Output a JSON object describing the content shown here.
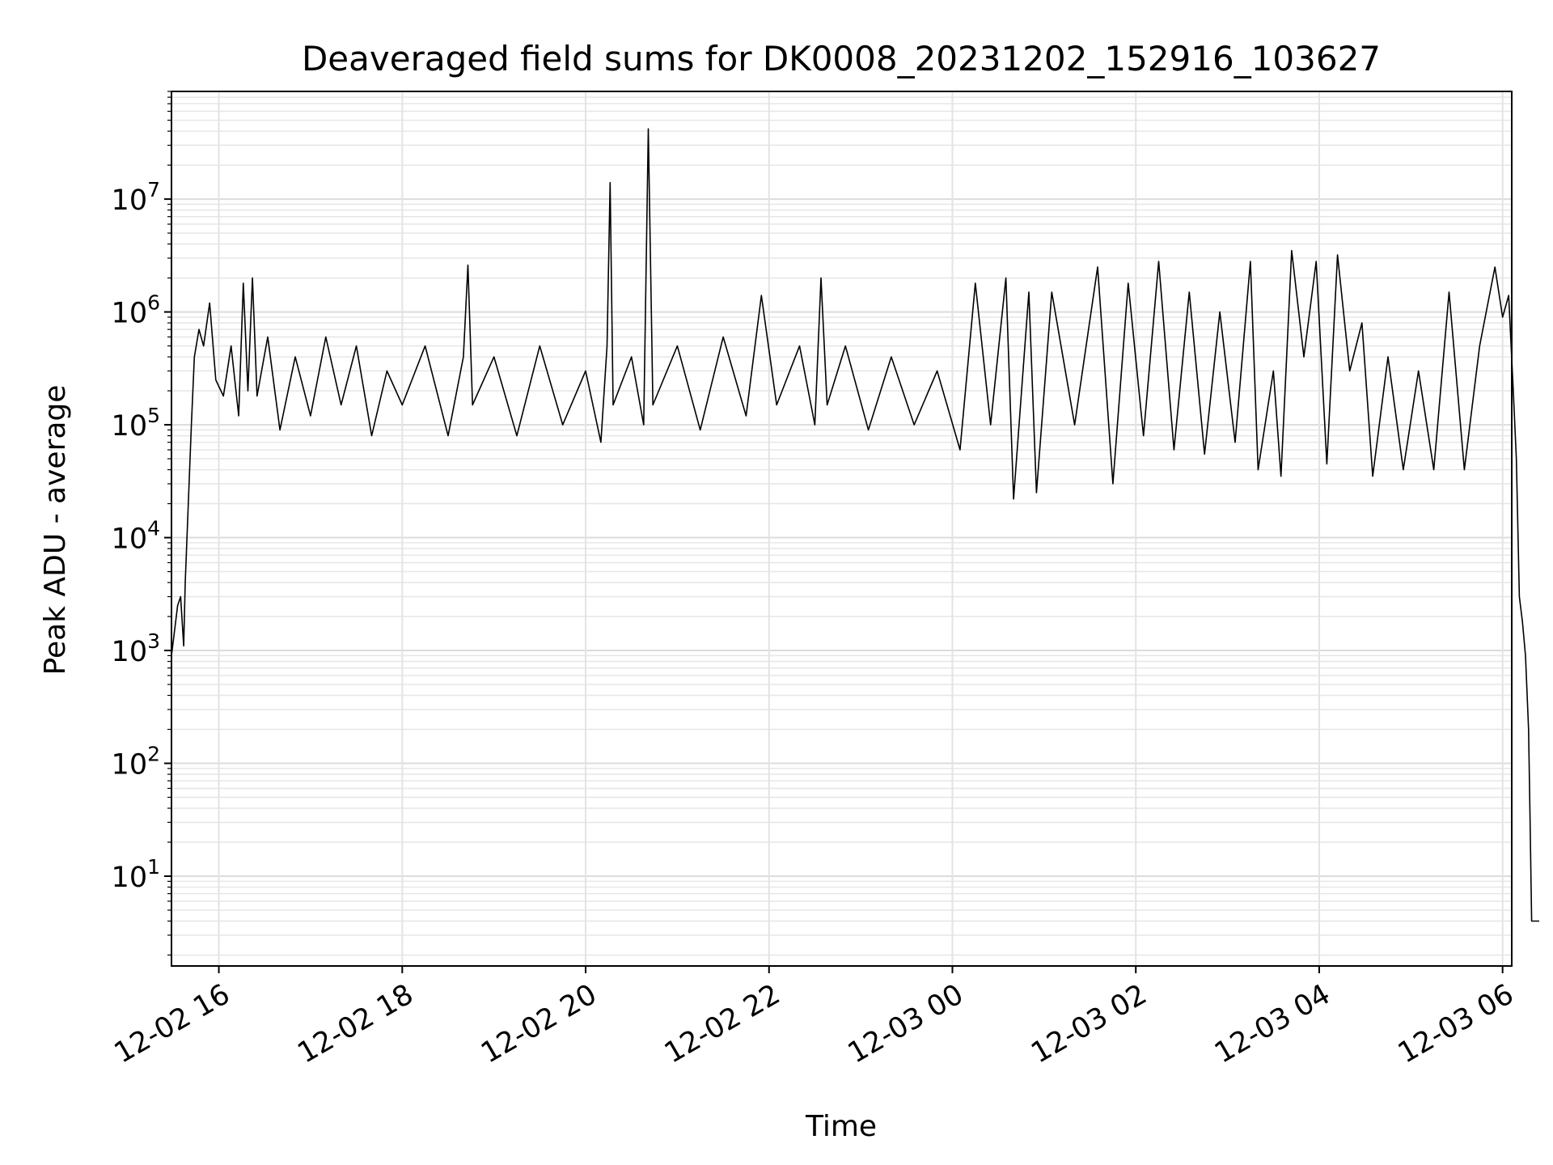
{
  "chart_data": {
    "type": "line",
    "title": "Deaveraged field sums for DK0008_20231202_152916_103627",
    "xlabel": "Time",
    "ylabel": "Peak ADU - average",
    "yscale": "log",
    "ylim": [
      1.6,
      90000000
    ],
    "xlim": [
      "2023-12-02 15:29",
      "2023-12-03 06:06"
    ],
    "grid": true,
    "line_color": "#000000",
    "x_ticks": [
      {
        "t": "2023-12-02 16:00",
        "label": "12-02 16"
      },
      {
        "t": "2023-12-02 18:00",
        "label": "12-02 18"
      },
      {
        "t": "2023-12-02 20:00",
        "label": "12-02 20"
      },
      {
        "t": "2023-12-02 22:00",
        "label": "12-02 22"
      },
      {
        "t": "2023-12-03 00:00",
        "label": "12-03 00"
      },
      {
        "t": "2023-12-03 02:00",
        "label": "12-03 02"
      },
      {
        "t": "2023-12-03 04:00",
        "label": "12-03 04"
      },
      {
        "t": "2023-12-03 06:00",
        "label": "12-03 06"
      }
    ],
    "y_ticks": [
      {
        "value": 10,
        "base": "10",
        "exp": "1"
      },
      {
        "value": 100,
        "base": "10",
        "exp": "2"
      },
      {
        "value": 1000,
        "base": "10",
        "exp": "3"
      },
      {
        "value": 10000,
        "base": "10",
        "exp": "4"
      },
      {
        "value": 100000,
        "base": "10",
        "exp": "5"
      },
      {
        "value": 1000000,
        "base": "10",
        "exp": "6"
      },
      {
        "value": 10000000,
        "base": "10",
        "exp": "7"
      }
    ],
    "series": [
      {
        "points": [
          [
            "2023-12-02 15:29",
            900
          ],
          [
            "2023-12-02 15:31",
            1500
          ],
          [
            "2023-12-02 15:33",
            2500
          ],
          [
            "2023-12-02 15:35",
            3000
          ],
          [
            "2023-12-02 15:37",
            1100
          ],
          [
            "2023-12-02 15:38",
            4000
          ],
          [
            "2023-12-02 15:40",
            20000
          ],
          [
            "2023-12-02 15:42",
            100000
          ],
          [
            "2023-12-02 15:44",
            400000
          ],
          [
            "2023-12-02 15:47",
            700000
          ],
          [
            "2023-12-02 15:50",
            500000
          ],
          [
            "2023-12-02 15:54",
            1200000
          ],
          [
            "2023-12-02 15:58",
            250000
          ],
          [
            "2023-12-02 16:03",
            180000
          ],
          [
            "2023-12-02 16:08",
            500000
          ],
          [
            "2023-12-02 16:13",
            120000
          ],
          [
            "2023-12-02 16:16",
            1800000
          ],
          [
            "2023-12-02 16:19",
            200000
          ],
          [
            "2023-12-02 16:22",
            2000000
          ],
          [
            "2023-12-02 16:25",
            180000
          ],
          [
            "2023-12-02 16:32",
            600000
          ],
          [
            "2023-12-02 16:40",
            90000
          ],
          [
            "2023-12-02 16:50",
            400000
          ],
          [
            "2023-12-02 17:00",
            120000
          ],
          [
            "2023-12-02 17:10",
            600000
          ],
          [
            "2023-12-02 17:20",
            150000
          ],
          [
            "2023-12-02 17:30",
            500000
          ],
          [
            "2023-12-02 17:40",
            80000
          ],
          [
            "2023-12-02 17:50",
            300000
          ],
          [
            "2023-12-02 18:00",
            150000
          ],
          [
            "2023-12-02 18:15",
            500000
          ],
          [
            "2023-12-02 18:30",
            80000
          ],
          [
            "2023-12-02 18:40",
            400000
          ],
          [
            "2023-12-02 18:43",
            2600000
          ],
          [
            "2023-12-02 18:46",
            150000
          ],
          [
            "2023-12-02 19:00",
            400000
          ],
          [
            "2023-12-02 19:15",
            80000
          ],
          [
            "2023-12-02 19:30",
            500000
          ],
          [
            "2023-12-02 19:45",
            100000
          ],
          [
            "2023-12-02 20:00",
            300000
          ],
          [
            "2023-12-02 20:10",
            70000
          ],
          [
            "2023-12-02 20:14",
            500000
          ],
          [
            "2023-12-02 20:16",
            14000000
          ],
          [
            "2023-12-02 20:18",
            150000
          ],
          [
            "2023-12-02 20:30",
            400000
          ],
          [
            "2023-12-02 20:38",
            100000
          ],
          [
            "2023-12-02 20:41",
            42000000
          ],
          [
            "2023-12-02 20:44",
            150000
          ],
          [
            "2023-12-02 21:00",
            500000
          ],
          [
            "2023-12-02 21:15",
            90000
          ],
          [
            "2023-12-02 21:30",
            600000
          ],
          [
            "2023-12-02 21:45",
            120000
          ],
          [
            "2023-12-02 21:55",
            1400000
          ],
          [
            "2023-12-02 22:05",
            150000
          ],
          [
            "2023-12-02 22:20",
            500000
          ],
          [
            "2023-12-02 22:30",
            100000
          ],
          [
            "2023-12-02 22:34",
            2000000
          ],
          [
            "2023-12-02 22:38",
            150000
          ],
          [
            "2023-12-02 22:50",
            500000
          ],
          [
            "2023-12-02 23:05",
            90000
          ],
          [
            "2023-12-02 23:20",
            400000
          ],
          [
            "2023-12-02 23:35",
            100000
          ],
          [
            "2023-12-02 23:50",
            300000
          ],
          [
            "2023-12-03 00:05",
            60000
          ],
          [
            "2023-12-03 00:15",
            1800000
          ],
          [
            "2023-12-03 00:25",
            100000
          ],
          [
            "2023-12-03 00:35",
            2000000
          ],
          [
            "2023-12-03 00:40",
            22000
          ],
          [
            "2023-12-03 00:50",
            1500000
          ],
          [
            "2023-12-03 00:55",
            25000
          ],
          [
            "2023-12-03 01:05",
            1500000
          ],
          [
            "2023-12-03 01:20",
            100000
          ],
          [
            "2023-12-03 01:35",
            2500000
          ],
          [
            "2023-12-03 01:45",
            30000
          ],
          [
            "2023-12-03 01:55",
            1800000
          ],
          [
            "2023-12-03 02:05",
            80000
          ],
          [
            "2023-12-03 02:15",
            2800000
          ],
          [
            "2023-12-03 02:25",
            60000
          ],
          [
            "2023-12-03 02:35",
            1500000
          ],
          [
            "2023-12-03 02:45",
            55000
          ],
          [
            "2023-12-03 02:55",
            1000000
          ],
          [
            "2023-12-03 03:05",
            70000
          ],
          [
            "2023-12-03 03:15",
            2800000
          ],
          [
            "2023-12-03 03:20",
            40000
          ],
          [
            "2023-12-03 03:30",
            300000
          ],
          [
            "2023-12-03 03:35",
            35000
          ],
          [
            "2023-12-03 03:42",
            3500000
          ],
          [
            "2023-12-03 03:50",
            400000
          ],
          [
            "2023-12-03 03:58",
            2800000
          ],
          [
            "2023-12-03 04:05",
            45000
          ],
          [
            "2023-12-03 04:12",
            3200000
          ],
          [
            "2023-12-03 04:20",
            300000
          ],
          [
            "2023-12-03 04:28",
            800000
          ],
          [
            "2023-12-03 04:35",
            35000
          ],
          [
            "2023-12-03 04:45",
            400000
          ],
          [
            "2023-12-03 04:55",
            40000
          ],
          [
            "2023-12-03 05:05",
            300000
          ],
          [
            "2023-12-03 05:15",
            40000
          ],
          [
            "2023-12-03 05:25",
            1500000
          ],
          [
            "2023-12-03 05:35",
            40000
          ],
          [
            "2023-12-03 05:45",
            500000
          ],
          [
            "2023-12-03 05:55",
            2500000
          ],
          [
            "2023-12-03 06:00",
            900000
          ],
          [
            "2023-12-03 06:04",
            1400000
          ],
          [
            "2023-12-03 06:07",
            200000
          ],
          [
            "2023-12-03 06:09",
            50000
          ],
          [
            "2023-12-03 06:11",
            3000
          ],
          [
            "2023-12-03 06:13",
            1800
          ],
          [
            "2023-12-03 06:15",
            900
          ],
          [
            "2023-12-03 06:17",
            200
          ],
          [
            "2023-12-03 06:18",
            30
          ],
          [
            "2023-12-03 06:19",
            4
          ],
          [
            "2023-12-03 06:22",
            4
          ],
          [
            "2023-12-03 06:24",
            4
          ]
        ]
      }
    ]
  }
}
